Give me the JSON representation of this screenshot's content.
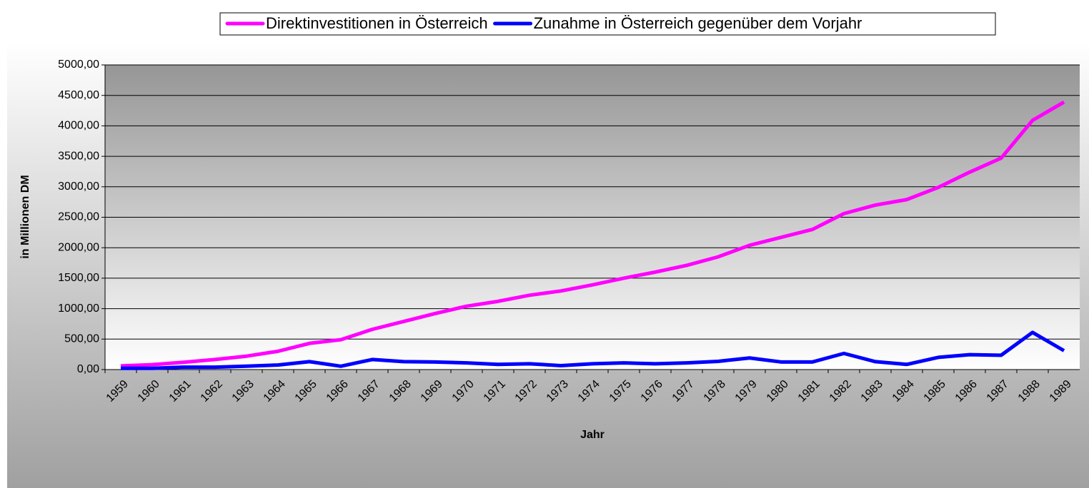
{
  "chart_data": {
    "type": "line",
    "x_label": "Jahr",
    "y_label": "in Millionen DM",
    "categories": [
      "1959",
      "1960",
      "1961",
      "1962",
      "1963",
      "1964",
      "1965",
      "1966",
      "1967",
      "1968",
      "1969",
      "1970",
      "1971",
      "1972",
      "1973",
      "1974",
      "1975",
      "1976",
      "1977",
      "1978",
      "1979",
      "1980",
      "1981",
      "1982",
      "1983",
      "1984",
      "1985",
      "1986",
      "1987",
      "1988",
      "1989"
    ],
    "series": [
      {
        "name": "Direktinvestitionen in Österreich",
        "color": "#ff00ff",
        "values": [
          60,
          80,
          120,
          165,
          220,
          300,
          430,
          490,
          660,
          790,
          920,
          1040,
          1120,
          1220,
          1290,
          1390,
          1500,
          1600,
          1710,
          1850,
          2040,
          2170,
          2300,
          2560,
          2700,
          2790,
          2990,
          3240,
          3470,
          4090,
          4390
        ]
      },
      {
        "name": "Zunahme in Österreich gegenüber dem Vorjahr",
        "color": "#0000ff",
        "values": [
          20,
          20,
          40,
          40,
          55,
          75,
          130,
          55,
          165,
          130,
          125,
          110,
          85,
          95,
          65,
          95,
          110,
          95,
          110,
          135,
          190,
          125,
          125,
          265,
          130,
          85,
          200,
          245,
          235,
          610,
          310
        ]
      }
    ],
    "ylim": [
      0,
      5000
    ],
    "yticks": [
      {
        "value": 0,
        "label": "0,00"
      },
      {
        "value": 500,
        "label": "500,00"
      },
      {
        "value": 1000,
        "label": "1000,00"
      },
      {
        "value": 1500,
        "label": "1500,00"
      },
      {
        "value": 2000,
        "label": "2000,00"
      },
      {
        "value": 2500,
        "label": "2500,00"
      },
      {
        "value": 3000,
        "label": "3000,00"
      },
      {
        "value": 3500,
        "label": "3500,00"
      },
      {
        "value": 4000,
        "label": "4000,00"
      },
      {
        "value": 4500,
        "label": "4500,00"
      },
      {
        "value": 5000,
        "label": "5000,00"
      }
    ],
    "grid": true,
    "legend": "top"
  }
}
